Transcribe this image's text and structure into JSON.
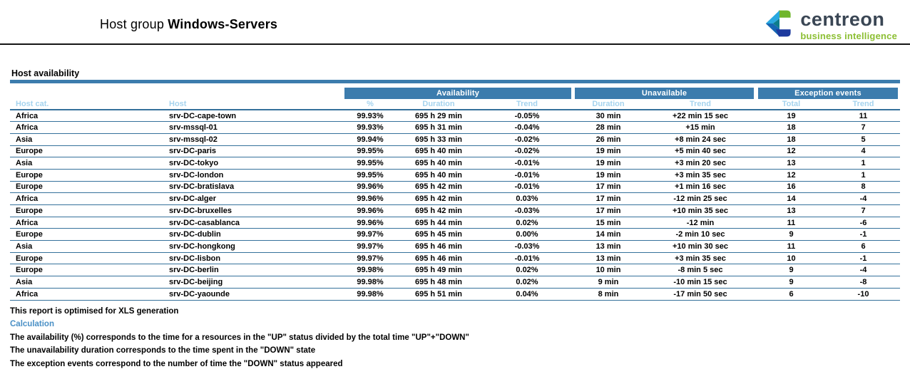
{
  "header": {
    "title_prefix": "Host group",
    "title_name": "Windows-Servers",
    "logo": {
      "brand": "centreon",
      "tagline": "business intelligence"
    }
  },
  "section": {
    "title": "Host availability"
  },
  "table": {
    "group_headers": [
      {
        "label": "Availability",
        "span": 3
      },
      {
        "label": "Unavailable",
        "span": 2
      },
      {
        "label": "Exception events",
        "span": 2
      }
    ],
    "columns": [
      "Host cat.",
      "Host",
      "%",
      "Duration",
      "Trend",
      "Duration",
      "Trend",
      "Total",
      "Trend"
    ],
    "rows": [
      [
        "Africa",
        "srv-DC-cape-town",
        "99.93%",
        "695 h 29 min",
        "-0.05%",
        "30 min",
        "+22 min 15 sec",
        "19",
        "11"
      ],
      [
        "Africa",
        "srv-mssql-01",
        "99.93%",
        "695 h 31 min",
        "-0.04%",
        "28 min",
        "+15 min",
        "18",
        "7"
      ],
      [
        "Asia",
        "srv-mssql-02",
        "99.94%",
        "695 h 33 min",
        "-0.02%",
        "26 min",
        "+8 min 24 sec",
        "18",
        "5"
      ],
      [
        "Europe",
        "srv-DC-paris",
        "99.95%",
        "695 h 40 min",
        "-0.02%",
        "19 min",
        "+5 min 40 sec",
        "12",
        "4"
      ],
      [
        "Asia",
        "srv-DC-tokyo",
        "99.95%",
        "695 h 40 min",
        "-0.01%",
        "19 min",
        "+3 min 20 sec",
        "13",
        "1"
      ],
      [
        "Europe",
        "srv-DC-london",
        "99.95%",
        "695 h 40 min",
        "-0.01%",
        "19 min",
        "+3 min 35 sec",
        "12",
        "1"
      ],
      [
        "Europe",
        "srv-DC-bratislava",
        "99.96%",
        "695 h 42 min",
        "-0.01%",
        "17 min",
        "+1 min 16 sec",
        "16",
        "8"
      ],
      [
        "Africa",
        "srv-DC-alger",
        "99.96%",
        "695 h 42 min",
        "0.03%",
        "17 min",
        "-12 min 25 sec",
        "14",
        "-4"
      ],
      [
        "Europe",
        "srv-DC-bruxelles",
        "99.96%",
        "695 h 42 min",
        "-0.03%",
        "17 min",
        "+10 min 35 sec",
        "13",
        "7"
      ],
      [
        "Africa",
        "srv-DC-casablanca",
        "99.96%",
        "695 h 44 min",
        "0.02%",
        "15 min",
        "-12 min",
        "11",
        "-6"
      ],
      [
        "Europe",
        "srv-DC-dublin",
        "99.97%",
        "695 h 45 min",
        "0.00%",
        "14 min",
        "-2 min 10 sec",
        "9",
        "-1"
      ],
      [
        "Asia",
        "srv-DC-hongkong",
        "99.97%",
        "695 h 46 min",
        "-0.03%",
        "13 min",
        "+10 min 30 sec",
        "11",
        "6"
      ],
      [
        "Europe",
        "srv-DC-lisbon",
        "99.97%",
        "695 h 46 min",
        "-0.01%",
        "13 min",
        "+3 min 35 sec",
        "10",
        "-1"
      ],
      [
        "Europe",
        "srv-DC-berlin",
        "99.98%",
        "695 h 49 min",
        "0.02%",
        "10 min",
        "-8 min 5 sec",
        "9",
        "-4"
      ],
      [
        "Asia",
        "srv-DC-beijing",
        "99.98%",
        "695 h 48 min",
        "0.02%",
        "9 min",
        "-10 min 15 sec",
        "9",
        "-8"
      ],
      [
        "Africa",
        "srv-DC-yaounde",
        "99.98%",
        "695 h 51 min",
        "0.04%",
        "8 min",
        "-17 min 50 sec",
        "6",
        "-10"
      ]
    ]
  },
  "footer": {
    "note": "This report is optimised for XLS generation",
    "calculation_label": "Calculation",
    "lines": [
      "The availability (%) corresponds to the time for a resources in the \"UP\" status divided by the total time \"UP\"+\"DOWN\"",
      "The unavailability duration corresponds to the time spent in the \"DOWN\" state",
      "The exception events correspond to the number of time the \"DOWN\" status appeared"
    ]
  },
  "colors": {
    "accent_blue": "#3c7cad",
    "row_line_blue": "#35719b",
    "subheader_blue": "#a5d3ee",
    "calculation_blue": "#4a90c6",
    "logo_green": "#8cbf33",
    "logo_dark": "#3a4654"
  }
}
